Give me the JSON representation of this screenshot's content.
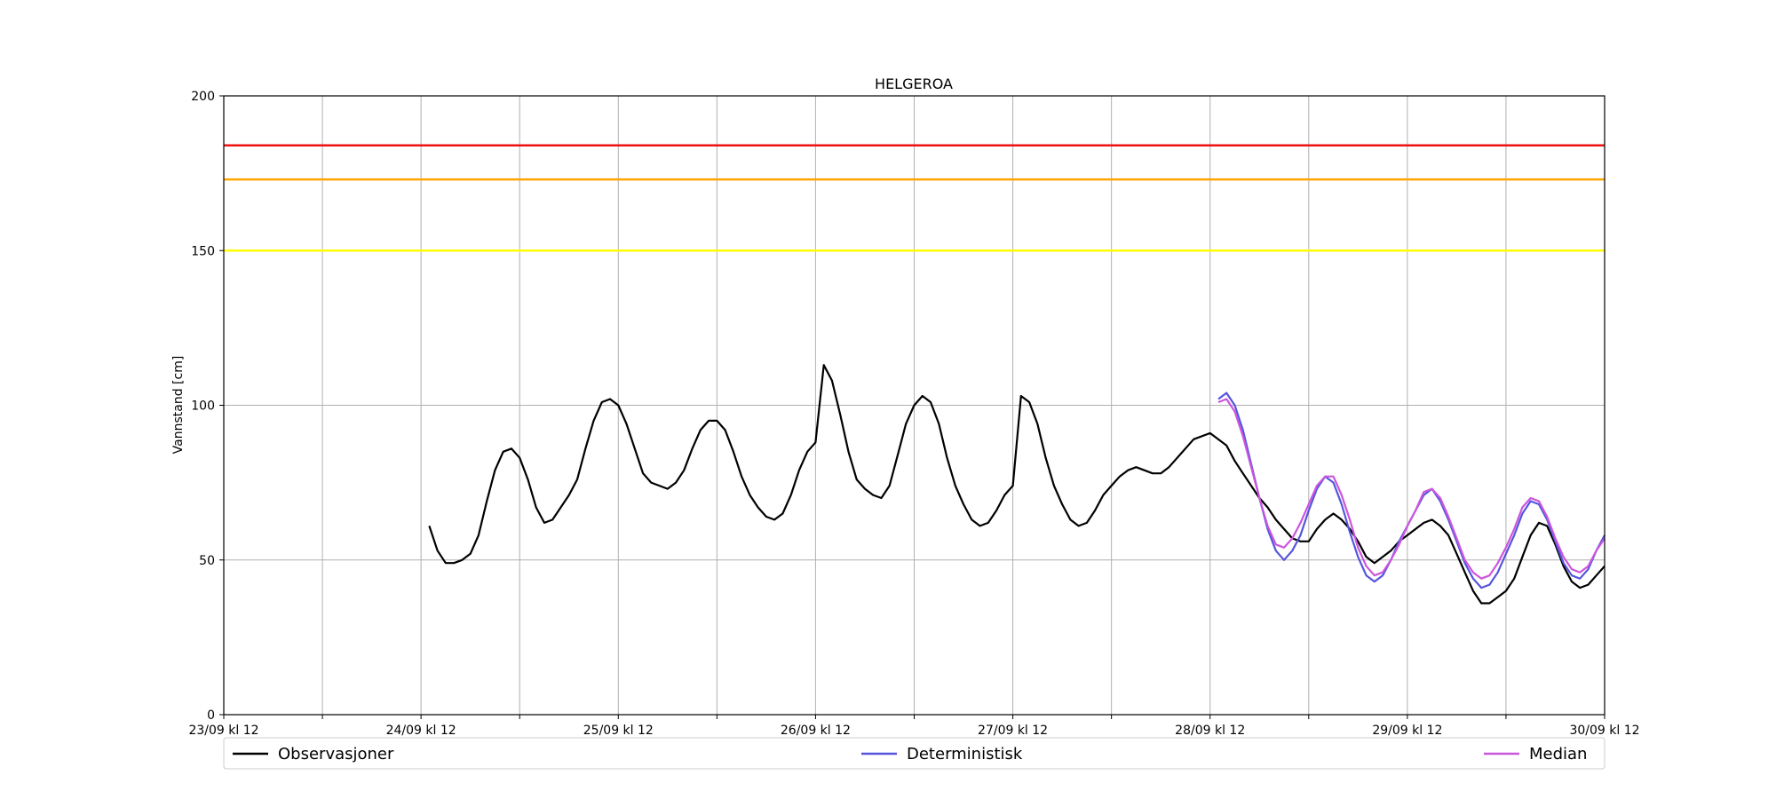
{
  "chart_data": {
    "type": "line",
    "title": "HELGEROA",
    "xlabel": "",
    "ylabel": "Vannstand [cm]",
    "ylim": [
      0,
      200
    ],
    "yticks": [
      0,
      50,
      100,
      150,
      200
    ],
    "xlim": [
      "23/09 kl 12",
      "30/09 kl 12"
    ],
    "xticks": [
      "23/09 kl 12",
      "24/09 kl 12",
      "25/09 kl 12",
      "26/09 kl 12",
      "27/09 kl 12",
      "28/09 kl 12",
      "29/09 kl 12",
      "30/09 kl 12"
    ],
    "grid": true,
    "legend_position": "bottom",
    "thresholds": [
      {
        "value": 184,
        "color": "#ee1111"
      },
      {
        "value": 173,
        "color": "#ffa500"
      },
      {
        "value": 150,
        "color": "#ffff00"
      }
    ],
    "series": [
      {
        "name": "Observasjoner",
        "color": "#000000",
        "x": [
          "24/09 kl 13",
          "24/09 kl 14",
          "24/09 kl 15",
          "24/09 kl 16",
          "24/09 kl 17",
          "24/09 kl 18",
          "24/09 kl 19",
          "24/09 kl 20",
          "24/09 kl 21",
          "24/09 kl 22",
          "24/09 kl 23",
          "25/09 kl 00",
          "25/09 kl 01",
          "25/09 kl 02",
          "25/09 kl 03",
          "25/09 kl 04",
          "25/09 kl 05",
          "25/09 kl 06",
          "25/09 kl 07",
          "25/09 kl 08",
          "25/09 kl 09",
          "25/09 kl 10",
          "25/09 kl 11",
          "25/09 kl 12",
          "25/09 kl 13",
          "25/09 kl 14",
          "25/09 kl 15",
          "25/09 kl 16",
          "25/09 kl 17",
          "25/09 kl 18",
          "25/09 kl 19",
          "25/09 kl 20",
          "25/09 kl 21",
          "25/09 kl 22",
          "25/09 kl 23",
          "26/09 kl 00",
          "26/09 kl 01",
          "26/09 kl 02",
          "26/09 kl 03",
          "26/09 kl 04",
          "26/09 kl 05",
          "26/09 kl 06",
          "26/09 kl 07",
          "26/09 kl 08",
          "26/09 kl 09",
          "26/09 kl 10",
          "26/09 kl 11",
          "26/09 kl 12",
          "26/09 kl 13",
          "26/09 kl 14",
          "26/09 kl 15",
          "26/09 kl 16",
          "26/09 kl 17",
          "26/09 kl 18",
          "26/09 kl 19",
          "26/09 kl 20",
          "26/09 kl 21",
          "26/09 kl 22",
          "26/09 kl 23",
          "27/09 kl 00",
          "27/09 kl 01",
          "27/09 kl 02",
          "27/09 kl 03",
          "27/09 kl 04",
          "27/09 kl 05",
          "27/09 kl 06",
          "27/09 kl 07",
          "27/09 kl 08",
          "27/09 kl 09",
          "27/09 kl 10",
          "27/09 kl 11",
          "27/09 kl 12",
          "27/09 kl 13",
          "27/09 kl 14",
          "27/09 kl 15",
          "27/09 kl 16",
          "27/09 kl 17",
          "27/09 kl 18",
          "27/09 kl 19",
          "27/09 kl 20",
          "27/09 kl 21",
          "27/09 kl 22",
          "27/09 kl 23",
          "28/09 kl 00",
          "28/09 kl 01",
          "28/09 kl 02",
          "28/09 kl 03",
          "28/09 kl 04",
          "28/09 kl 05",
          "28/09 kl 06",
          "28/09 kl 07",
          "28/09 kl 08",
          "28/09 kl 09",
          "28/09 kl 10",
          "28/09 kl 12",
          "28/09 kl 14",
          "28/09 kl 15",
          "28/09 kl 16",
          "28/09 kl 17",
          "28/09 kl 18",
          "28/09 kl 19",
          "28/09 kl 20",
          "28/09 kl 21",
          "28/09 kl 22",
          "28/09 kl 23",
          "29/09 kl 00",
          "29/09 kl 01",
          "29/09 kl 02",
          "29/09 kl 03",
          "29/09 kl 04",
          "29/09 kl 05",
          "29/09 kl 06",
          "29/09 kl 07",
          "29/09 kl 08",
          "29/09 kl 09",
          "29/09 kl 10",
          "29/09 kl 11",
          "29/09 kl 12",
          "29/09 kl 13",
          "29/09 kl 14",
          "29/09 kl 15",
          "29/09 kl 16",
          "29/09 kl 17",
          "29/09 kl 18",
          "29/09 kl 19",
          "29/09 kl 20",
          "29/09 kl 21",
          "29/09 kl 22",
          "29/09 kl 23",
          "30/09 kl 00",
          "30/09 kl 01",
          "30/09 kl 02",
          "30/09 kl 03",
          "30/09 kl 04",
          "30/09 kl 05",
          "30/09 kl 06",
          "30/09 kl 07",
          "30/09 kl 08",
          "30/09 kl 09",
          "30/09 kl 10",
          "30/09 kl 11",
          "30/09 kl 12"
        ],
        "y": [
          61,
          53,
          49,
          49,
          50,
          52,
          58,
          69,
          79,
          85,
          86,
          83,
          76,
          67,
          62,
          63,
          67,
          71,
          76,
          86,
          95,
          101,
          102,
          100,
          94,
          86,
          78,
          75,
          74,
          73,
          75,
          79,
          86,
          92,
          95,
          95,
          92,
          85,
          77,
          71,
          67,
          64,
          63,
          65,
          71,
          79,
          85,
          88,
          113,
          108,
          97,
          85,
          76,
          73,
          71,
          70,
          74,
          84,
          94,
          100,
          103,
          101,
          94,
          83,
          74,
          68,
          63,
          61,
          62,
          66,
          71,
          74,
          103,
          101,
          94,
          83,
          74,
          68,
          63,
          61,
          62,
          66,
          71,
          74,
          77,
          79,
          80,
          79,
          78,
          78,
          80,
          83,
          86,
          89,
          91,
          87,
          82,
          78,
          74,
          70,
          67,
          63,
          60,
          57,
          56,
          56,
          60,
          63,
          65,
          63,
          60,
          56,
          51,
          49,
          51,
          53,
          56,
          58,
          60,
          62,
          63,
          61,
          58,
          52,
          46,
          40,
          36,
          36,
          38,
          40,
          44,
          51,
          58,
          62,
          61,
          55,
          48,
          43,
          41,
          42,
          45,
          48
        ]
      },
      {
        "name": "Deterministisk",
        "color": "#5555dd",
        "x": [
          "28/09 kl 13",
          "28/09 kl 14",
          "28/09 kl 15",
          "28/09 kl 16",
          "28/09 kl 17",
          "28/09 kl 18",
          "28/09 kl 19",
          "28/09 kl 20",
          "28/09 kl 21",
          "28/09 kl 22",
          "28/09 kl 23",
          "29/09 kl 00",
          "29/09 kl 01",
          "29/09 kl 02",
          "29/09 kl 03",
          "29/09 kl 04",
          "29/09 kl 05",
          "29/09 kl 06",
          "29/09 kl 07",
          "29/09 kl 08",
          "29/09 kl 09",
          "29/09 kl 10",
          "29/09 kl 11",
          "29/09 kl 12",
          "29/09 kl 13",
          "29/09 kl 14",
          "29/09 kl 15",
          "29/09 kl 16",
          "29/09 kl 17",
          "29/09 kl 18",
          "29/09 kl 19",
          "29/09 kl 20",
          "29/09 kl 21",
          "29/09 kl 22",
          "29/09 kl 23",
          "30/09 kl 00",
          "30/09 kl 01",
          "30/09 kl 02",
          "30/09 kl 03",
          "30/09 kl 04",
          "30/09 kl 05",
          "30/09 kl 06",
          "30/09 kl 07",
          "30/09 kl 08",
          "30/09 kl 09",
          "30/09 kl 10",
          "30/09 kl 11",
          "30/09 kl 12"
        ],
        "y": [
          102,
          104,
          100,
          92,
          81,
          70,
          60,
          53,
          50,
          53,
          58,
          66,
          73,
          77,
          75,
          68,
          59,
          51,
          45,
          43,
          45,
          50,
          56,
          61,
          66,
          71,
          73,
          69,
          63,
          56,
          49,
          44,
          41,
          42,
          46,
          52,
          58,
          65,
          69,
          68,
          63,
          56,
          49,
          45,
          44,
          47,
          53,
          58
        ]
      },
      {
        "name": "Median",
        "color": "#cc55dd",
        "x": [
          "28/09 kl 13",
          "28/09 kl 14",
          "28/09 kl 15",
          "28/09 kl 16",
          "28/09 kl 17",
          "28/09 kl 18",
          "28/09 kl 19",
          "28/09 kl 20",
          "28/09 kl 21",
          "28/09 kl 22",
          "28/09 kl 23",
          "29/09 kl 00",
          "29/09 kl 01",
          "29/09 kl 02",
          "29/09 kl 03",
          "29/09 kl 04",
          "29/09 kl 05",
          "29/09 kl 06",
          "29/09 kl 07",
          "29/09 kl 08",
          "29/09 kl 09",
          "29/09 kl 10",
          "29/09 kl 11",
          "29/09 kl 12",
          "29/09 kl 13",
          "29/09 kl 14",
          "29/09 kl 15",
          "29/09 kl 16",
          "29/09 kl 17",
          "29/09 kl 18",
          "29/09 kl 19",
          "29/09 kl 20",
          "29/09 kl 21",
          "29/09 kl 22",
          "29/09 kl 23",
          "30/09 kl 00",
          "30/09 kl 01",
          "30/09 kl 02",
          "30/09 kl 03",
          "30/09 kl 04",
          "30/09 kl 05",
          "30/09 kl 06",
          "30/09 kl 07",
          "30/09 kl 08",
          "30/09 kl 09",
          "30/09 kl 10",
          "30/09 kl 11",
          "30/09 kl 12"
        ],
        "y": [
          101,
          102,
          98,
          90,
          80,
          70,
          61,
          55,
          54,
          57,
          62,
          68,
          74,
          77,
          77,
          71,
          63,
          54,
          48,
          45,
          46,
          50,
          55,
          61,
          66,
          72,
          73,
          70,
          64,
          57,
          50,
          46,
          44,
          45,
          49,
          54,
          60,
          67,
          70,
          69,
          64,
          57,
          51,
          47,
          46,
          48,
          53,
          57
        ]
      }
    ]
  }
}
